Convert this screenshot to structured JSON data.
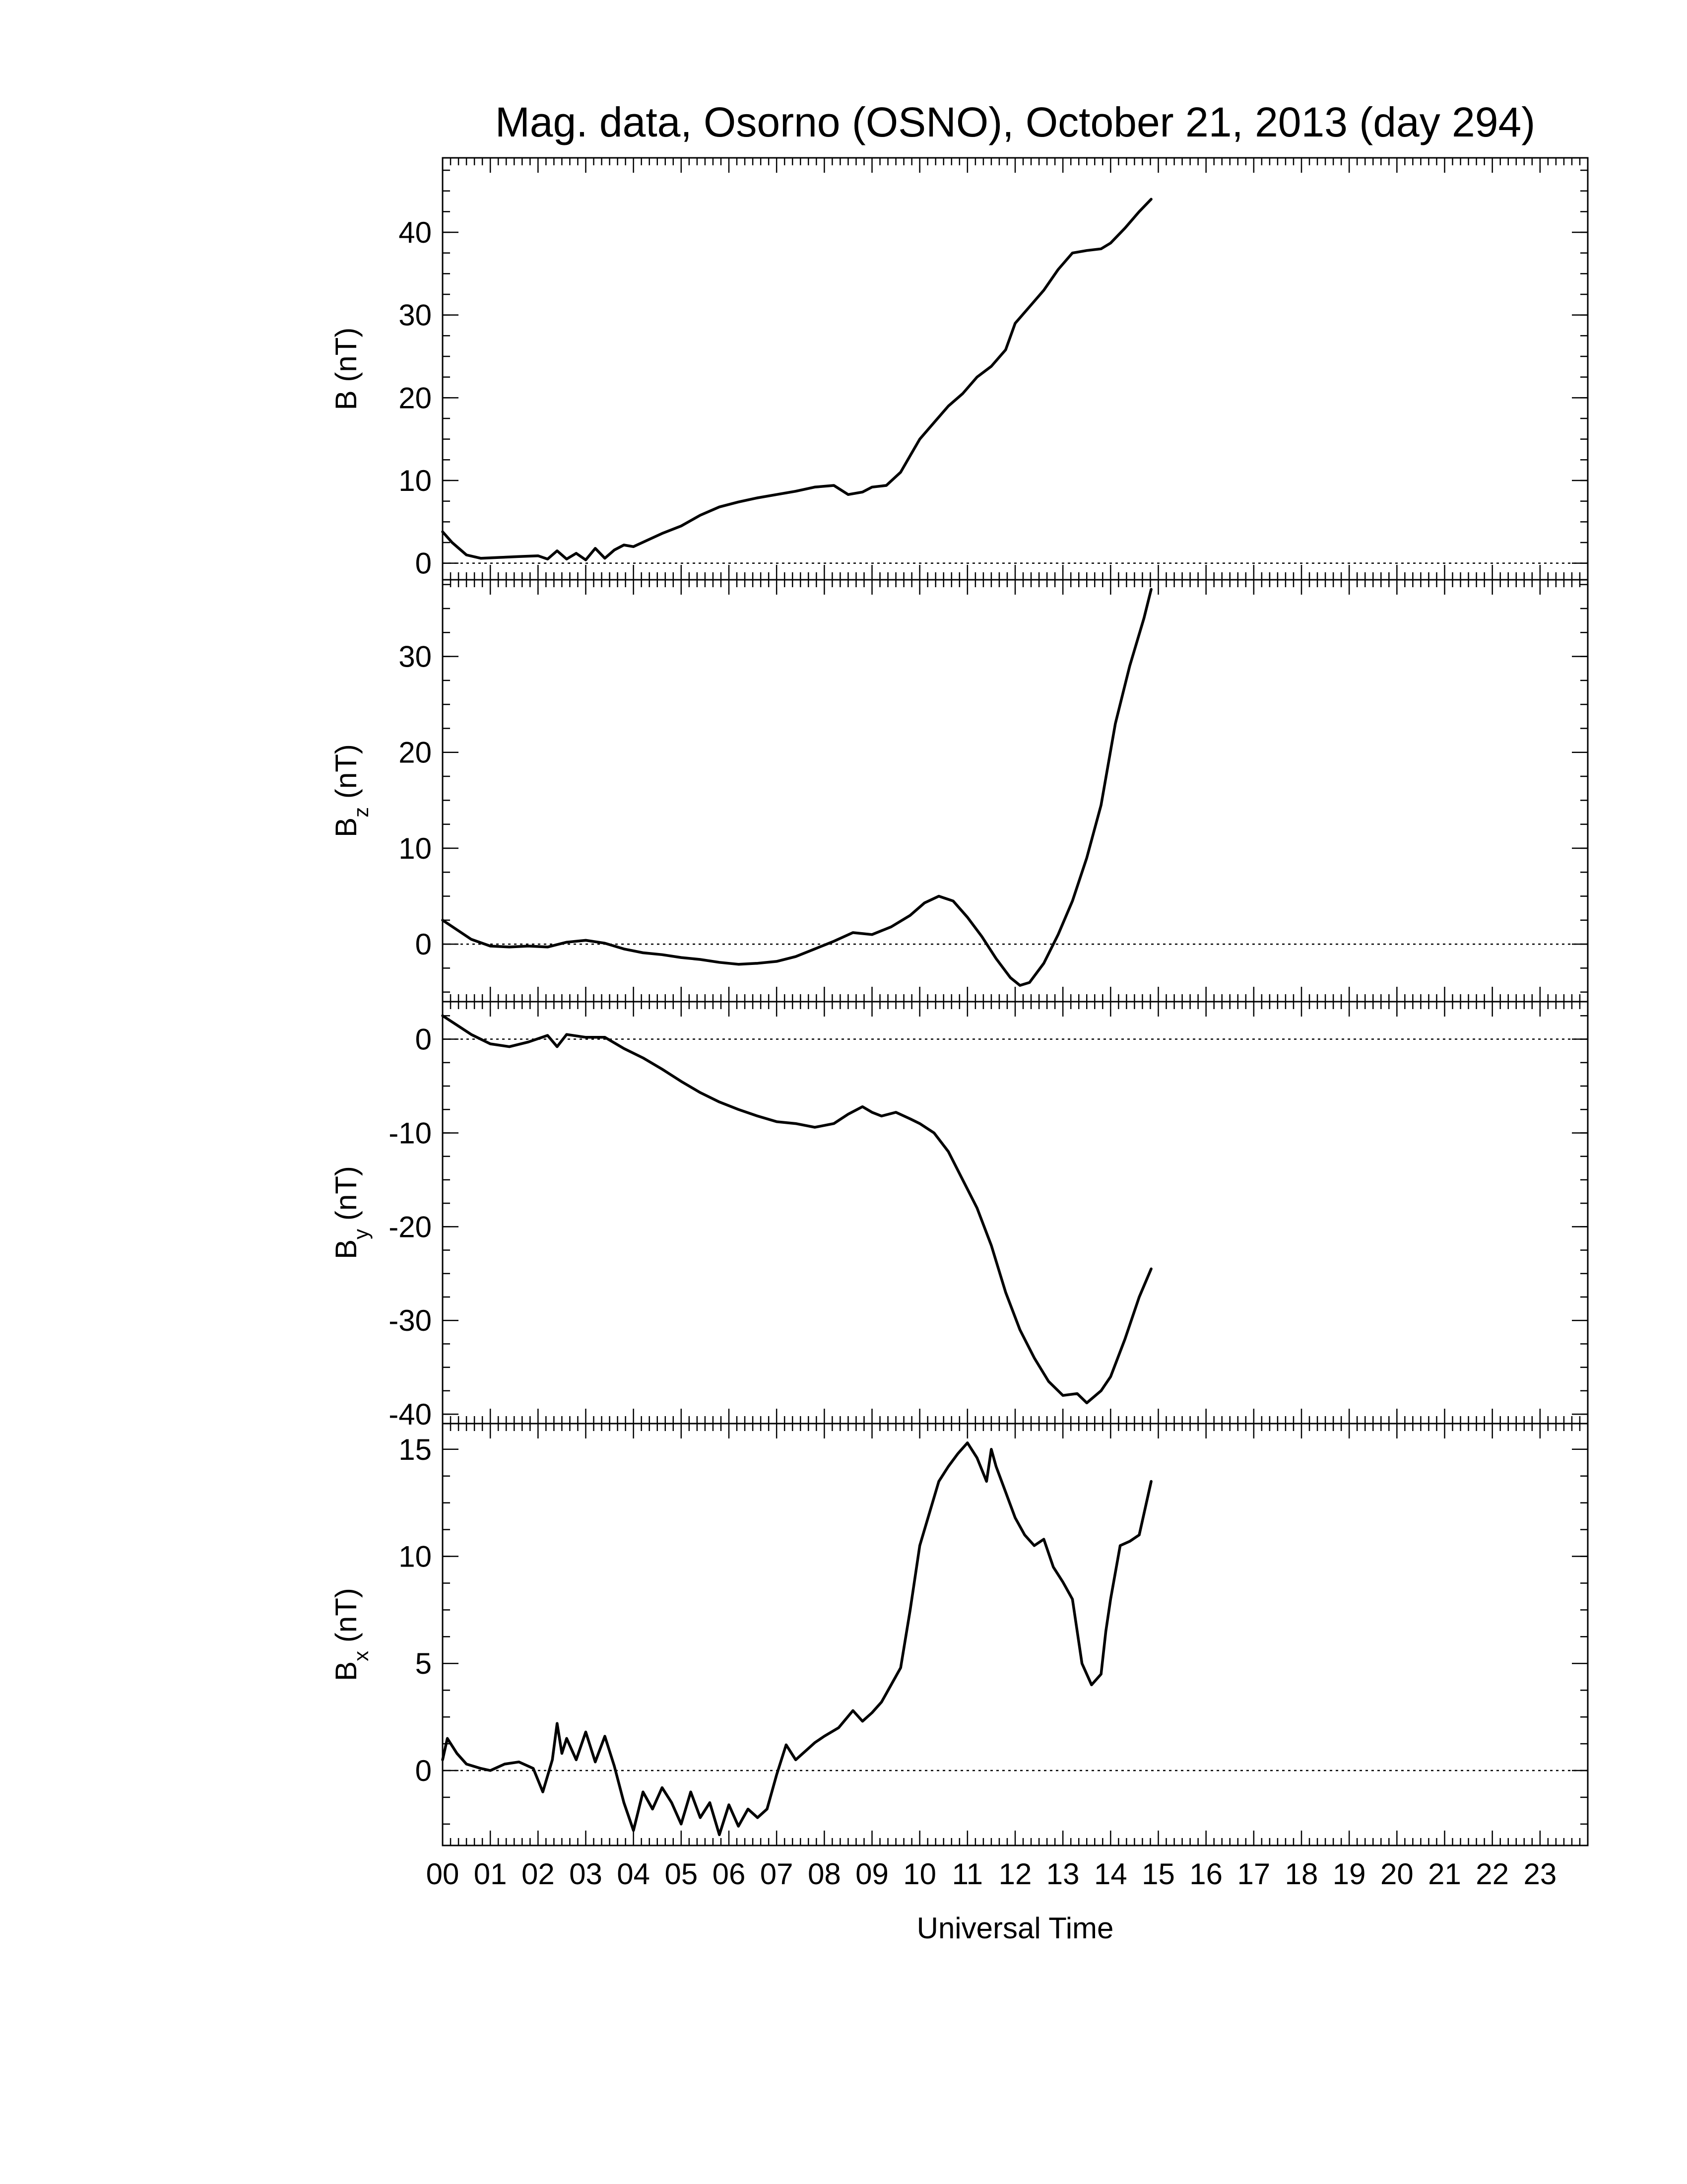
{
  "chart_data": {
    "title": "Mag. data, Osorno (OSNO), October 21, 2013 (day 294)",
    "xlabel": "Universal Time",
    "xlim": [
      0,
      24
    ],
    "x_tick_labels": [
      "00",
      "01",
      "02",
      "03",
      "04",
      "05",
      "06",
      "07",
      "08",
      "09",
      "10",
      "11",
      "12",
      "13",
      "14",
      "15",
      "16",
      "17",
      "18",
      "19",
      "20",
      "21",
      "22",
      "23"
    ],
    "panels": [
      {
        "type": "line",
        "ylabel": "B (nT)",
        "ylabel_main": "B",
        "ylabel_sub": "",
        "ylabel_unit": "(nT)",
        "ylim": [
          -2,
          49
        ],
        "yticks": [
          0,
          10,
          20,
          30,
          40
        ],
        "ytick_labels": [
          "0",
          "10",
          "20",
          "30",
          "40"
        ],
        "zero_line": true,
        "x": [
          0.0,
          0.2,
          0.5,
          0.8,
          1.2,
          1.6,
          2.0,
          2.2,
          2.4,
          2.6,
          2.8,
          3.0,
          3.2,
          3.4,
          3.6,
          3.8,
          4.0,
          4.3,
          4.6,
          5.0,
          5.4,
          5.8,
          6.2,
          6.6,
          7.0,
          7.4,
          7.8,
          8.2,
          8.5,
          8.8,
          9.0,
          9.3,
          9.6,
          9.8,
          10.0,
          10.3,
          10.6,
          10.9,
          11.2,
          11.5,
          11.8,
          12.0,
          12.3,
          12.6,
          12.9,
          13.2,
          13.5,
          13.8,
          14.0,
          14.3,
          14.6,
          14.85
        ],
        "values": [
          3.8,
          2.5,
          1.0,
          0.6,
          0.7,
          0.8,
          0.9,
          0.5,
          1.5,
          0.5,
          1.2,
          0.4,
          1.8,
          0.6,
          1.6,
          2.2,
          2.0,
          2.8,
          3.6,
          4.5,
          5.8,
          6.8,
          7.4,
          7.9,
          8.3,
          8.7,
          9.2,
          9.4,
          8.3,
          8.6,
          9.2,
          9.4,
          11.0,
          13.0,
          15.0,
          17.0,
          19.0,
          20.5,
          22.5,
          23.8,
          25.8,
          29.0,
          31.0,
          33.0,
          35.5,
          37.5,
          37.8,
          38.0,
          38.7,
          40.5,
          42.5,
          44.0
        ]
      },
      {
        "type": "line",
        "ylabel": "Bz (nT)",
        "ylabel_main": "B",
        "ylabel_sub": "z",
        "ylabel_unit": "(nT)",
        "ylim": [
          -6,
          38
        ],
        "yticks": [
          0,
          10,
          20,
          30
        ],
        "ytick_labels": [
          "0",
          "10",
          "20",
          "30"
        ],
        "zero_line": true,
        "x": [
          0.0,
          0.3,
          0.6,
          1.0,
          1.4,
          1.8,
          2.2,
          2.6,
          3.0,
          3.4,
          3.8,
          4.2,
          4.6,
          5.0,
          5.4,
          5.8,
          6.2,
          6.6,
          7.0,
          7.4,
          7.8,
          8.2,
          8.6,
          9.0,
          9.4,
          9.8,
          10.1,
          10.4,
          10.7,
          11.0,
          11.3,
          11.6,
          11.9,
          12.1,
          12.3,
          12.6,
          12.9,
          13.2,
          13.5,
          13.8,
          14.1,
          14.4,
          14.7,
          14.85
        ],
        "values": [
          2.5,
          1.5,
          0.5,
          -0.2,
          -0.3,
          -0.2,
          -0.3,
          0.2,
          0.4,
          0.1,
          -0.5,
          -0.9,
          -1.1,
          -1.4,
          -1.6,
          -1.9,
          -2.1,
          -2.0,
          -1.8,
          -1.3,
          -0.5,
          0.3,
          1.2,
          1.0,
          1.8,
          3.0,
          4.3,
          5.0,
          4.5,
          2.8,
          0.8,
          -1.5,
          -3.5,
          -4.3,
          -4.0,
          -2.0,
          1.0,
          4.5,
          9.0,
          14.5,
          23.0,
          29.0,
          34.0,
          37.0
        ]
      },
      {
        "type": "line",
        "ylabel": "By (nT)",
        "ylabel_main": "B",
        "ylabel_sub": "y",
        "ylabel_unit": "(nT)",
        "ylim": [
          -41,
          4
        ],
        "yticks": [
          0,
          -10,
          -20,
          -30,
          -40
        ],
        "ytick_labels": [
          "0",
          "-10",
          "-20",
          "-30",
          "-40"
        ],
        "zero_line": true,
        "x": [
          0.0,
          0.3,
          0.6,
          1.0,
          1.4,
          1.8,
          2.2,
          2.4,
          2.6,
          3.0,
          3.4,
          3.8,
          4.2,
          4.6,
          5.0,
          5.4,
          5.8,
          6.2,
          6.6,
          7.0,
          7.4,
          7.8,
          8.2,
          8.5,
          8.8,
          9.0,
          9.2,
          9.5,
          9.8,
          10.0,
          10.3,
          10.6,
          10.9,
          11.2,
          11.5,
          11.8,
          12.1,
          12.4,
          12.7,
          13.0,
          13.3,
          13.5,
          13.8,
          14.0,
          14.3,
          14.6,
          14.85
        ],
        "values": [
          2.5,
          1.5,
          0.5,
          -0.5,
          -0.8,
          -0.3,
          0.4,
          -0.8,
          0.5,
          0.2,
          0.2,
          -1.0,
          -2.0,
          -3.2,
          -4.5,
          -5.7,
          -6.7,
          -7.5,
          -8.2,
          -8.8,
          -9.0,
          -9.4,
          -9.0,
          -8.0,
          -7.2,
          -7.8,
          -8.2,
          -7.8,
          -8.5,
          -9.0,
          -10.0,
          -12.0,
          -15.0,
          -18.0,
          -22.0,
          -27.0,
          -31.0,
          -34.0,
          -36.5,
          -38.0,
          -37.8,
          -38.8,
          -37.5,
          -36.0,
          -32.0,
          -27.5,
          -24.5
        ]
      },
      {
        "type": "line",
        "ylabel": "Bx (nT)",
        "ylabel_main": "B",
        "ylabel_sub": "x",
        "ylabel_unit": "(nT)",
        "ylim": [
          -3.5,
          16.2
        ],
        "yticks": [
          0,
          5,
          10,
          15
        ],
        "ytick_labels": [
          "0",
          "5",
          "10",
          "15"
        ],
        "zero_line": true,
        "x": [
          0.0,
          0.1,
          0.3,
          0.5,
          0.8,
          1.0,
          1.3,
          1.6,
          1.9,
          2.1,
          2.3,
          2.4,
          2.5,
          2.6,
          2.8,
          3.0,
          3.2,
          3.4,
          3.6,
          3.8,
          4.0,
          4.2,
          4.4,
          4.6,
          4.8,
          5.0,
          5.2,
          5.4,
          5.6,
          5.8,
          6.0,
          6.2,
          6.4,
          6.6,
          6.8,
          7.0,
          7.2,
          7.4,
          7.6,
          7.8,
          8.0,
          8.3,
          8.6,
          8.8,
          9.0,
          9.2,
          9.4,
          9.6,
          9.8,
          10.0,
          10.2,
          10.4,
          10.6,
          10.8,
          11.0,
          11.2,
          11.4,
          11.5,
          11.6,
          11.8,
          12.0,
          12.2,
          12.4,
          12.6,
          12.8,
          13.0,
          13.2,
          13.4,
          13.6,
          13.8,
          13.9,
          14.0,
          14.2,
          14.4,
          14.6,
          14.85
        ],
        "values": [
          0.5,
          1.5,
          0.8,
          0.3,
          0.1,
          0.0,
          0.3,
          0.4,
          0.1,
          -1.0,
          0.5,
          2.2,
          0.8,
          1.5,
          0.5,
          1.8,
          0.4,
          1.6,
          0.2,
          -1.5,
          -2.8,
          -1.0,
          -1.8,
          -0.8,
          -1.5,
          -2.5,
          -1.0,
          -2.2,
          -1.5,
          -3.0,
          -1.6,
          -2.6,
          -1.8,
          -2.2,
          -1.8,
          -0.2,
          1.2,
          0.5,
          0.9,
          1.3,
          1.6,
          2.0,
          2.8,
          2.3,
          2.7,
          3.2,
          4.0,
          4.8,
          7.5,
          10.5,
          12.0,
          13.5,
          14.2,
          14.8,
          15.3,
          14.6,
          13.5,
          15.0,
          14.2,
          13.0,
          11.8,
          11.0,
          10.5,
          10.8,
          9.5,
          8.8,
          8.0,
          5.0,
          4.0,
          4.5,
          6.5,
          8.0,
          10.5,
          10.7,
          11.0,
          13.5
        ]
      }
    ]
  }
}
